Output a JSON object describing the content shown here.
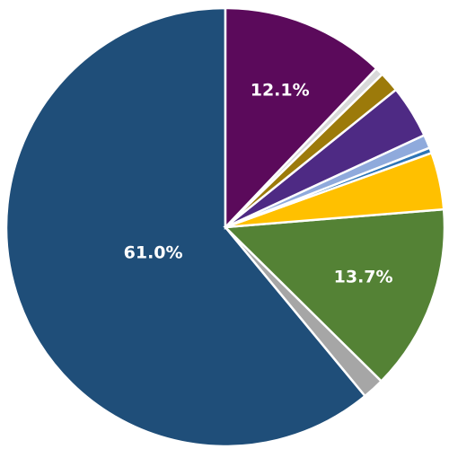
{
  "chart_data": {
    "type": "pie",
    "start_angle_deg": 90,
    "direction": "counterclockwise",
    "slices": [
      {
        "value": 61.0,
        "color": "#1f4e79",
        "label": "61.0%"
      },
      {
        "value": 1.6,
        "color": "#a6a6a6",
        "label": ""
      },
      {
        "value": 13.7,
        "color": "#548235",
        "label": "13.7%"
      },
      {
        "value": 4.2,
        "color": "#ffc000",
        "label": ""
      },
      {
        "value": 0.4,
        "color": "#2e75b6",
        "label": ""
      },
      {
        "value": 1.0,
        "color": "#8faadc",
        "label": ""
      },
      {
        "value": 3.9,
        "color": "#4e2a84",
        "label": ""
      },
      {
        "value": 1.5,
        "color": "#9c7a0a",
        "label": ""
      },
      {
        "value": 0.6,
        "color": "#d9d9d9",
        "label": ""
      },
      {
        "value": 12.1,
        "color": "#5b0a5b",
        "label": "12.1%"
      }
    ]
  }
}
